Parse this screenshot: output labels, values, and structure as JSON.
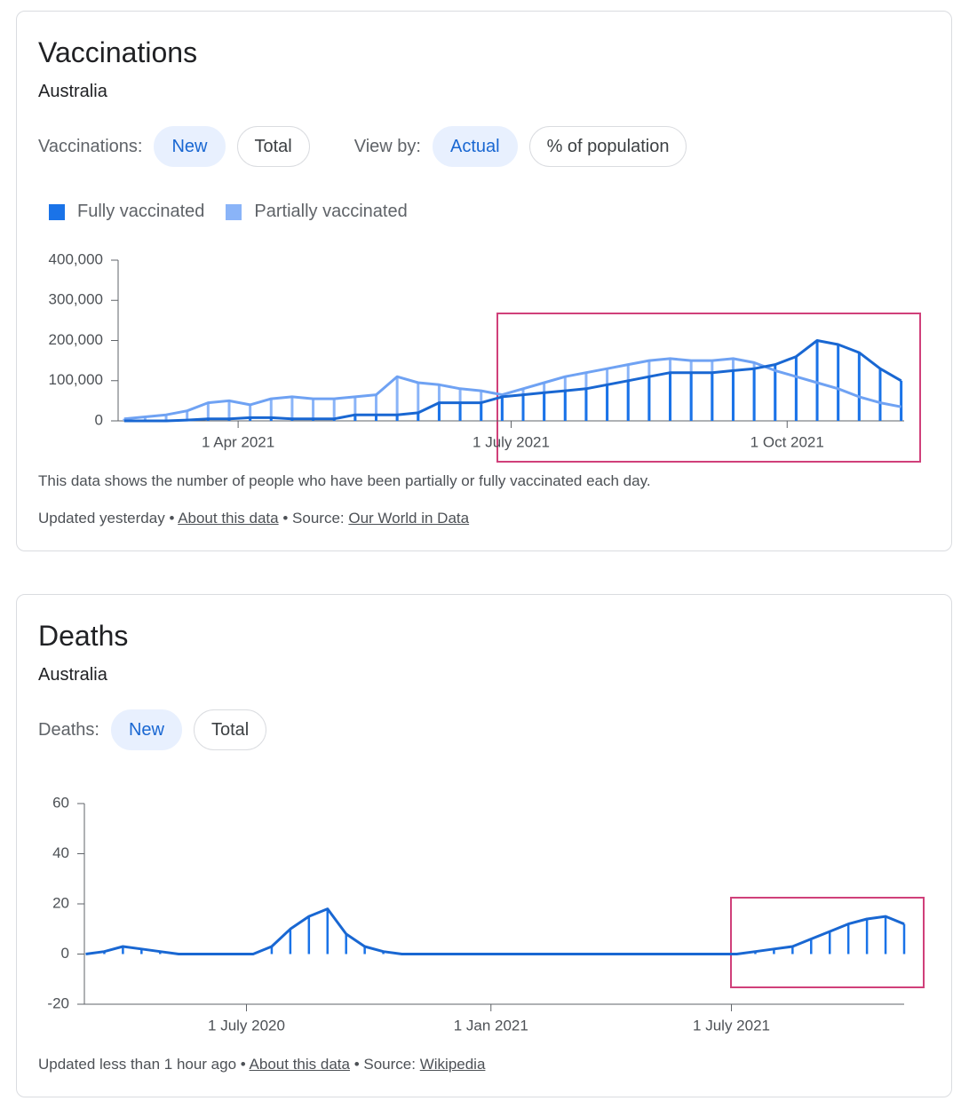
{
  "cards": [
    {
      "title": "Vaccinations",
      "subtitle": "Australia",
      "filters": [
        {
          "label": "Vaccinations:",
          "chips": [
            "New",
            "Total"
          ]
        },
        {
          "label": "View by:",
          "chips": [
            "Actual",
            "% of population"
          ]
        }
      ],
      "description": "This data shows the number of people who have been partially or fully vaccinated each day.",
      "updated": "Updated yesterday",
      "separator": "•",
      "about": "About this data",
      "source_label": "Source:",
      "source": "Our World in Data"
    },
    {
      "title": "Deaths",
      "subtitle": "Australia",
      "filters": [
        {
          "label": "Deaths:",
          "chips": [
            "New",
            "Total"
          ]
        }
      ],
      "updated": "Updated less than 1 hour ago",
      "separator": "•",
      "about": "About this data",
      "source_label": "Source:",
      "source": "Wikipedia"
    }
  ],
  "chart_data": [
    {
      "type": "combo",
      "x": [
        "2021-02-22",
        "2021-03-01",
        "2021-03-08",
        "2021-03-15",
        "2021-03-22",
        "2021-03-29",
        "2021-04-05",
        "2021-04-12",
        "2021-04-19",
        "2021-04-26",
        "2021-05-03",
        "2021-05-10",
        "2021-05-17",
        "2021-05-24",
        "2021-05-31",
        "2021-06-07",
        "2021-06-14",
        "2021-06-21",
        "2021-06-28",
        "2021-07-05",
        "2021-07-12",
        "2021-07-19",
        "2021-07-26",
        "2021-08-02",
        "2021-08-09",
        "2021-08-16",
        "2021-08-23",
        "2021-08-30",
        "2021-09-06",
        "2021-09-13",
        "2021-09-20",
        "2021-09-27",
        "2021-10-04",
        "2021-10-11",
        "2021-10-18",
        "2021-10-25",
        "2021-11-01",
        "2021-11-08"
      ],
      "series": [
        {
          "name": "Fully vaccinated",
          "color": "#1a73e8",
          "line_color": "#1967d2",
          "values": [
            0,
            0,
            0,
            2000,
            5000,
            5000,
            8000,
            8000,
            5000,
            5000,
            5000,
            15000,
            15000,
            15000,
            20000,
            45000,
            45000,
            45000,
            60000,
            65000,
            70000,
            75000,
            80000,
            90000,
            100000,
            110000,
            120000,
            120000,
            120000,
            125000,
            130000,
            140000,
            160000,
            200000,
            190000,
            170000,
            130000,
            100000
          ]
        },
        {
          "name": "Partially vaccinated",
          "color": "#8ab4f8",
          "line_color": "#6fa2f3",
          "values": [
            5000,
            10000,
            15000,
            25000,
            45000,
            50000,
            40000,
            55000,
            60000,
            55000,
            55000,
            60000,
            65000,
            110000,
            95000,
            90000,
            80000,
            75000,
            65000,
            80000,
            95000,
            110000,
            120000,
            130000,
            140000,
            150000,
            155000,
            150000,
            150000,
            155000,
            145000,
            125000,
            110000,
            95000,
            80000,
            60000,
            45000,
            35000
          ]
        }
      ],
      "xlim": [
        "2021-02-20",
        "2021-11-09"
      ],
      "xticks": [
        {
          "value": "2021-04-01",
          "label": "1 Apr 2021"
        },
        {
          "value": "2021-07-01",
          "label": "1 July 2021"
        },
        {
          "value": "2021-10-01",
          "label": "1 Oct 2021"
        }
      ],
      "ylim": [
        0,
        400000
      ],
      "yticks": [
        0,
        {
          "value": 100000,
          "label": "100,000"
        },
        {
          "value": 200000,
          "label": "200,000"
        },
        {
          "value": 300000,
          "label": "300,000"
        },
        {
          "value": 400000,
          "label": "400,000"
        }
      ]
    },
    {
      "type": "combo",
      "x": [
        "2020-03-02",
        "2020-03-16",
        "2020-03-30",
        "2020-04-13",
        "2020-04-27",
        "2020-05-11",
        "2020-05-25",
        "2020-06-08",
        "2020-06-22",
        "2020-07-06",
        "2020-07-20",
        "2020-08-03",
        "2020-08-17",
        "2020-08-31",
        "2020-09-14",
        "2020-09-28",
        "2020-10-12",
        "2020-10-26",
        "2020-11-09",
        "2020-11-23",
        "2020-12-07",
        "2020-12-21",
        "2021-01-04",
        "2021-01-18",
        "2021-02-01",
        "2021-02-15",
        "2021-03-01",
        "2021-03-15",
        "2021-03-29",
        "2021-04-12",
        "2021-04-26",
        "2021-05-10",
        "2021-05-24",
        "2021-06-07",
        "2021-06-21",
        "2021-07-05",
        "2021-07-19",
        "2021-08-02",
        "2021-08-16",
        "2021-08-30",
        "2021-09-13",
        "2021-09-27",
        "2021-10-11",
        "2021-10-25",
        "2021-11-08"
      ],
      "values": [
        0,
        1,
        3,
        2,
        1,
        0,
        0,
        0,
        0,
        0,
        3,
        10,
        15,
        18,
        8,
        3,
        1,
        0,
        0,
        0,
        0,
        0,
        0,
        0,
        0,
        0,
        0,
        0,
        0,
        0,
        0,
        0,
        0,
        0,
        0,
        0,
        1,
        2,
        3,
        6,
        9,
        12,
        14,
        15,
        12
      ],
      "color": "#1a73e8",
      "line_color": "#1967d2",
      "xlim": [
        "2020-03-01",
        "2021-11-08"
      ],
      "xticks": [
        {
          "value": "2020-07-01",
          "label": "1 July 2020"
        },
        {
          "value": "2021-01-01",
          "label": "1 Jan 2021"
        },
        {
          "value": "2021-07-01",
          "label": "1 July 2021"
        }
      ],
      "ylim": [
        -20,
        60
      ],
      "yticks": [
        -20,
        0,
        20,
        40,
        60
      ]
    }
  ]
}
